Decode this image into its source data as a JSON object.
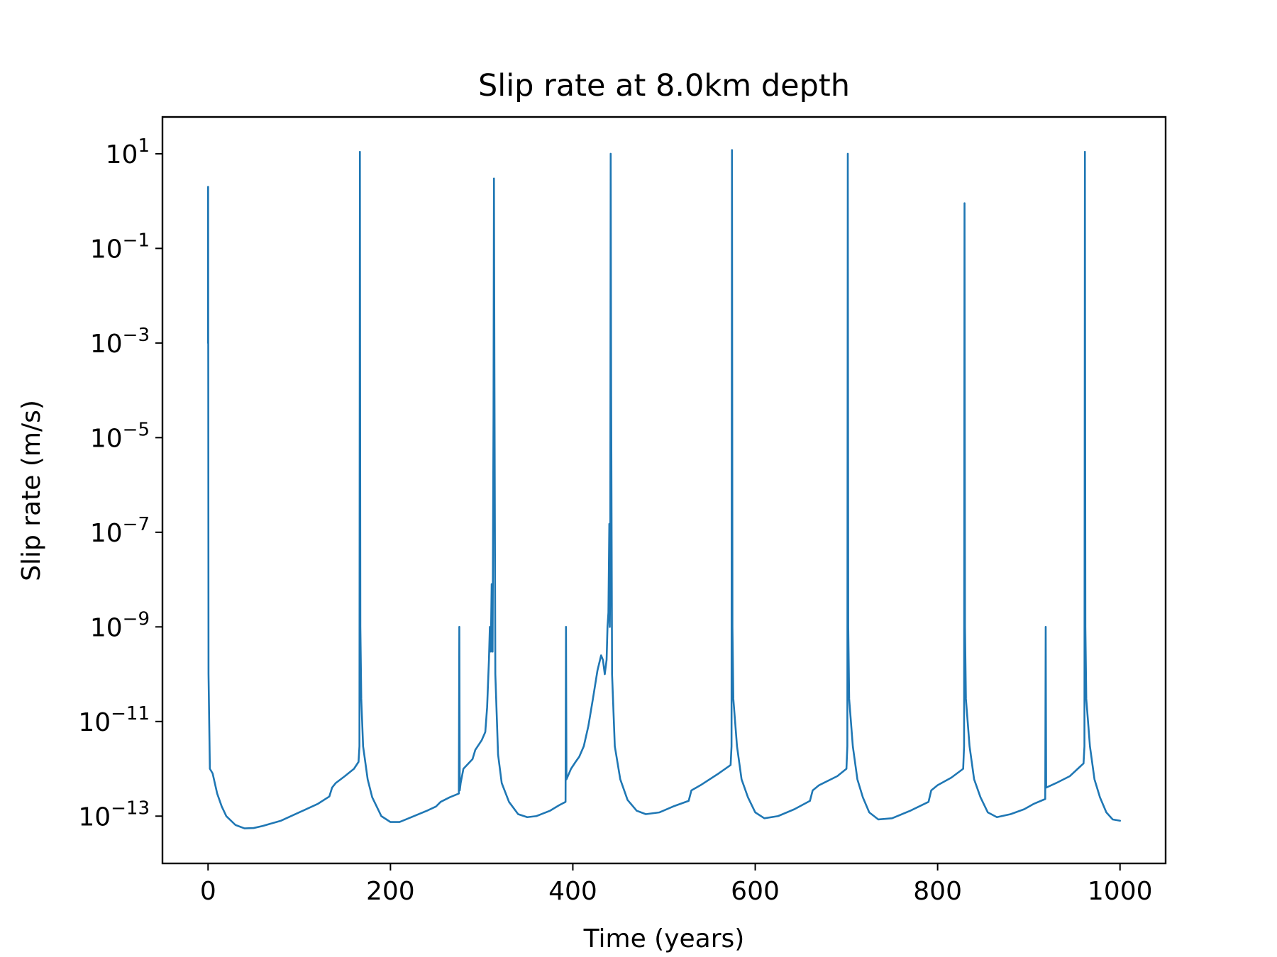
{
  "chart_data": {
    "type": "line",
    "title": "Slip rate at 8.0km depth",
    "xlabel": "Time (years)",
    "ylabel": "Slip rate (m/s)",
    "xlim": [
      -50,
      1050
    ],
    "ylim": [
      1e-14,
      60
    ],
    "yscale": "log",
    "grid": false,
    "line_color": "#1f77b4",
    "x_ticks": [
      {
        "value": 0,
        "label": "0"
      },
      {
        "value": 200,
        "label": "200"
      },
      {
        "value": 400,
        "label": "400"
      },
      {
        "value": 600,
        "label": "600"
      },
      {
        "value": 800,
        "label": "800"
      },
      {
        "value": 1000,
        "label": "1000"
      }
    ],
    "y_ticks": [
      {
        "value": 10.0,
        "mant": "10",
        "exp": "1"
      },
      {
        "value": 0.1,
        "mant": "10",
        "exp": "−1"
      },
      {
        "value": 0.001,
        "mant": "10",
        "exp": "−3"
      },
      {
        "value": 1e-05,
        "mant": "10",
        "exp": "−5"
      },
      {
        "value": 1e-07,
        "mant": "10",
        "exp": "−7"
      },
      {
        "value": 1e-09,
        "mant": "10",
        "exp": "−9"
      },
      {
        "value": 1e-11,
        "mant": "10",
        "exp": "−11"
      },
      {
        "value": 1e-13,
        "mant": "10",
        "exp": "−13"
      }
    ],
    "series": [
      {
        "points": [
          [
            0,
            0.001
          ],
          [
            0,
            2
          ],
          [
            0.1,
            2
          ],
          [
            0.2,
            0.001
          ],
          [
            0.5,
            1e-10
          ],
          [
            2,
            1e-12
          ],
          [
            5,
            8e-13
          ],
          [
            10,
            3e-13
          ],
          [
            15,
            1.6e-13
          ],
          [
            20,
            1e-13
          ],
          [
            30,
            6.5e-14
          ],
          [
            40,
            5.5e-14
          ],
          [
            50,
            5.6e-14
          ],
          [
            60,
            6.2e-14
          ],
          [
            80,
            8e-14
          ],
          [
            100,
            1.2e-13
          ],
          [
            120,
            1.8e-13
          ],
          [
            133,
            2.6e-13
          ],
          [
            136,
            4e-13
          ],
          [
            140,
            5e-13
          ],
          [
            150,
            7e-13
          ],
          [
            160,
            1e-12
          ],
          [
            165,
            1.4e-12
          ],
          [
            166,
            3e-12
          ],
          [
            166.5,
            11.0
          ],
          [
            167,
            1e-09
          ],
          [
            168,
            3e-11
          ],
          [
            170,
            3e-12
          ],
          [
            175,
            6e-13
          ],
          [
            180,
            2.5e-13
          ],
          [
            190,
            1e-13
          ],
          [
            200,
            7.5e-14
          ],
          [
            210,
            7.5e-14
          ],
          [
            220,
            9e-14
          ],
          [
            240,
            1.3e-13
          ],
          [
            250,
            1.6e-13
          ],
          [
            255,
            2e-13
          ],
          [
            265,
            2.5e-13
          ],
          [
            275,
            3e-13
          ],
          [
            275.5,
            1e-09
          ],
          [
            276,
            3.5e-13
          ],
          [
            277,
            5e-13
          ],
          [
            280,
            1e-12
          ],
          [
            290,
            1.6e-12
          ],
          [
            293,
            2.5e-12
          ],
          [
            300,
            4e-12
          ],
          [
            304,
            6e-12
          ],
          [
            306,
            2e-11
          ],
          [
            308,
            2e-10
          ],
          [
            309,
            1e-09
          ],
          [
            310,
            3e-10
          ],
          [
            311,
            8e-09
          ],
          [
            312,
            3e-10
          ],
          [
            313,
            3e-05
          ],
          [
            313.5,
            3
          ],
          [
            314,
            0.0003
          ],
          [
            315,
            1e-10
          ],
          [
            318,
            2e-12
          ],
          [
            322,
            5e-13
          ],
          [
            330,
            2e-13
          ],
          [
            340,
            1.1e-13
          ],
          [
            350,
            9.5e-14
          ],
          [
            360,
            1e-13
          ],
          [
            375,
            1.3e-13
          ],
          [
            385,
            1.7e-13
          ],
          [
            392,
            2e-13
          ],
          [
            392.5,
            1e-09
          ],
          [
            393,
            6e-13
          ],
          [
            398,
            1e-12
          ],
          [
            403,
            1.4e-12
          ],
          [
            407,
            1.8e-12
          ],
          [
            412,
            3e-12
          ],
          [
            417,
            8e-12
          ],
          [
            422,
            3e-11
          ],
          [
            427,
            1.2e-10
          ],
          [
            431,
            2.5e-10
          ],
          [
            433,
            2e-10
          ],
          [
            435,
            1e-10
          ],
          [
            437,
            2e-10
          ],
          [
            438,
            1e-09
          ],
          [
            439,
            2e-09
          ],
          [
            440,
            1.5e-07
          ],
          [
            440.5,
            1e-09
          ],
          [
            441,
            1e-08
          ],
          [
            441.5,
            10.0
          ],
          [
            442,
            0.0001
          ],
          [
            443,
            1e-10
          ],
          [
            446,
            3e-12
          ],
          [
            452,
            6e-13
          ],
          [
            460,
            2.2e-13
          ],
          [
            470,
            1.3e-13
          ],
          [
            480,
            1.1e-13
          ],
          [
            495,
            1.2e-13
          ],
          [
            510,
            1.6e-13
          ],
          [
            527,
            2.1e-13
          ],
          [
            530,
            3.5e-13
          ],
          [
            540,
            4.5e-13
          ],
          [
            560,
            8e-13
          ],
          [
            573,
            1.2e-12
          ],
          [
            574,
            3e-12
          ],
          [
            574.5,
            12.0
          ],
          [
            575,
            1e-09
          ],
          [
            576,
            3e-11
          ],
          [
            580,
            3e-12
          ],
          [
            585,
            6e-13
          ],
          [
            592,
            2.5e-13
          ],
          [
            600,
            1.2e-13
          ],
          [
            610,
            9e-14
          ],
          [
            625,
            1e-13
          ],
          [
            643,
            1.4e-13
          ],
          [
            660,
            2.1e-13
          ],
          [
            663,
            3.5e-13
          ],
          [
            670,
            4.5e-13
          ],
          [
            690,
            7e-13
          ],
          [
            700,
            1e-12
          ],
          [
            701,
            3e-12
          ],
          [
            701.5,
            10.0
          ],
          [
            702,
            1e-09
          ],
          [
            703,
            3e-11
          ],
          [
            707,
            3e-12
          ],
          [
            712,
            6e-13
          ],
          [
            718,
            2.5e-13
          ],
          [
            725,
            1.2e-13
          ],
          [
            735,
            8.5e-14
          ],
          [
            750,
            9e-14
          ],
          [
            770,
            1.3e-13
          ],
          [
            790,
            2e-13
          ],
          [
            793,
            3.5e-13
          ],
          [
            800,
            4.5e-13
          ],
          [
            815,
            6.5e-13
          ],
          [
            828,
            1e-12
          ],
          [
            829,
            3e-12
          ],
          [
            829.5,
            0.9
          ],
          [
            830,
            1e-09
          ],
          [
            831,
            3e-11
          ],
          [
            835,
            3e-12
          ],
          [
            840,
            6e-13
          ],
          [
            847,
            2.5e-13
          ],
          [
            855,
            1.2e-13
          ],
          [
            865,
            9.5e-14
          ],
          [
            880,
            1.1e-13
          ],
          [
            895,
            1.4e-13
          ],
          [
            905,
            1.8e-13
          ],
          [
            918,
            2.3e-13
          ],
          [
            918.5,
            1e-09
          ],
          [
            919,
            4e-13
          ],
          [
            930,
            5e-13
          ],
          [
            945,
            7e-13
          ],
          [
            960,
            1.3e-12
          ],
          [
            961,
            3e-12
          ],
          [
            961.5,
            11.0
          ],
          [
            962,
            1e-09
          ],
          [
            963,
            3e-11
          ],
          [
            967,
            3e-12
          ],
          [
            972,
            6e-13
          ],
          [
            978,
            2.5e-13
          ],
          [
            985,
            1.2e-13
          ],
          [
            992,
            8.5e-14
          ],
          [
            1000,
            8e-14
          ]
        ]
      }
    ]
  }
}
